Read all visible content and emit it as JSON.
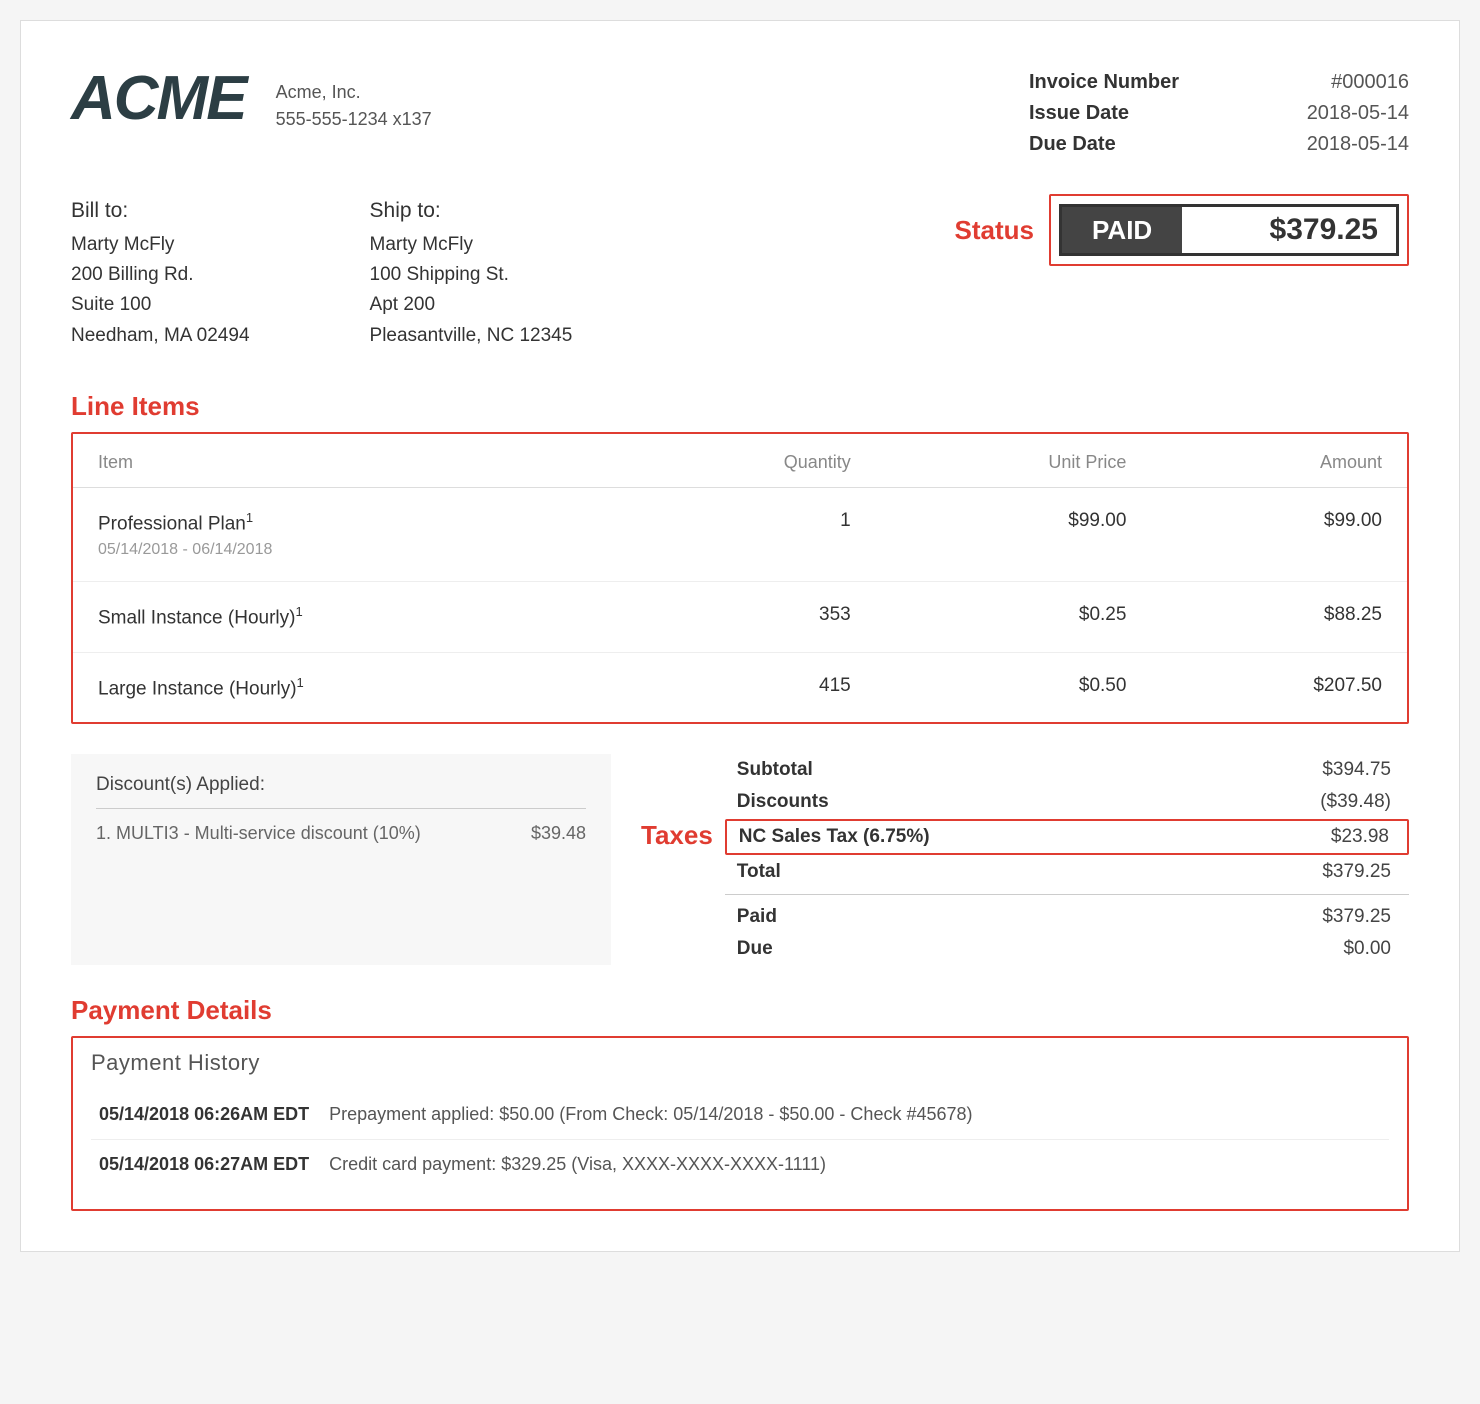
{
  "company": {
    "logo_text": "ACME",
    "name": "Acme, Inc.",
    "phone": "555-555-1234 x137"
  },
  "invoice_meta": {
    "number_label": "Invoice Number",
    "number_value": "#000016",
    "issue_label": "Issue Date",
    "issue_value": "2018-05-14",
    "due_label": "Due Date",
    "due_value": "2018-05-14"
  },
  "bill_to": {
    "heading": "Bill to:",
    "name": "Marty McFly",
    "line1": "200 Billing Rd.",
    "line2": "Suite 100",
    "city": "Needham, MA 02494"
  },
  "ship_to": {
    "heading": "Ship to:",
    "name": "Marty McFly",
    "line1": "100 Shipping St.",
    "line2": "Apt 200",
    "city": "Pleasantville, NC 12345"
  },
  "status": {
    "callout": "Status",
    "badge": "PAID",
    "amount": "$379.25"
  },
  "line_items": {
    "callout": "Line Items",
    "headers": {
      "item": "Item",
      "quantity": "Quantity",
      "unit_price": "Unit Price",
      "amount": "Amount"
    },
    "rows": [
      {
        "item": "Professional Plan",
        "sup": "1",
        "sub_date": "05/14/2018 - 06/14/2018",
        "quantity": "1",
        "unit_price": "$99.00",
        "amount": "$99.00"
      },
      {
        "item": "Small Instance (Hourly)",
        "sup": "1",
        "sub_date": "",
        "quantity": "353",
        "unit_price": "$0.25",
        "amount": "$88.25"
      },
      {
        "item": "Large Instance (Hourly)",
        "sup": "1",
        "sub_date": "",
        "quantity": "415",
        "unit_price": "$0.50",
        "amount": "$207.50"
      }
    ]
  },
  "discounts": {
    "title": "Discount(s) Applied:",
    "items": [
      {
        "text": "1. MULTI3 - Multi-service discount (10%)",
        "amount": "$39.48"
      }
    ]
  },
  "totals": {
    "taxes_callout": "Taxes",
    "rows": {
      "subtotal_label": "Subtotal",
      "subtotal_value": "$394.75",
      "discounts_label": "Discounts",
      "discounts_value": "($39.48)",
      "tax_label": "NC Sales Tax (6.75%)",
      "tax_value": "$23.98",
      "total_label": "Total",
      "total_value": "$379.25",
      "paid_label": "Paid",
      "paid_value": "$379.25",
      "due_label": "Due",
      "due_value": "$0.00"
    }
  },
  "payment": {
    "callout": "Payment Details",
    "history_title": "Payment History",
    "rows": [
      {
        "date": "05/14/2018 06:26AM EDT",
        "desc": "Prepayment applied: $50.00 (From Check: 05/14/2018 - $50.00 - Check #45678)"
      },
      {
        "date": "05/14/2018 06:27AM EDT",
        "desc": "Credit card payment: $329.25 (Visa, XXXX-XXXX-XXXX-1111)"
      }
    ]
  },
  "colors": {
    "callout_red": "#e03c31",
    "logo_color": "#2c3e44",
    "badge_bg": "#444444",
    "background": "#ffffff"
  }
}
